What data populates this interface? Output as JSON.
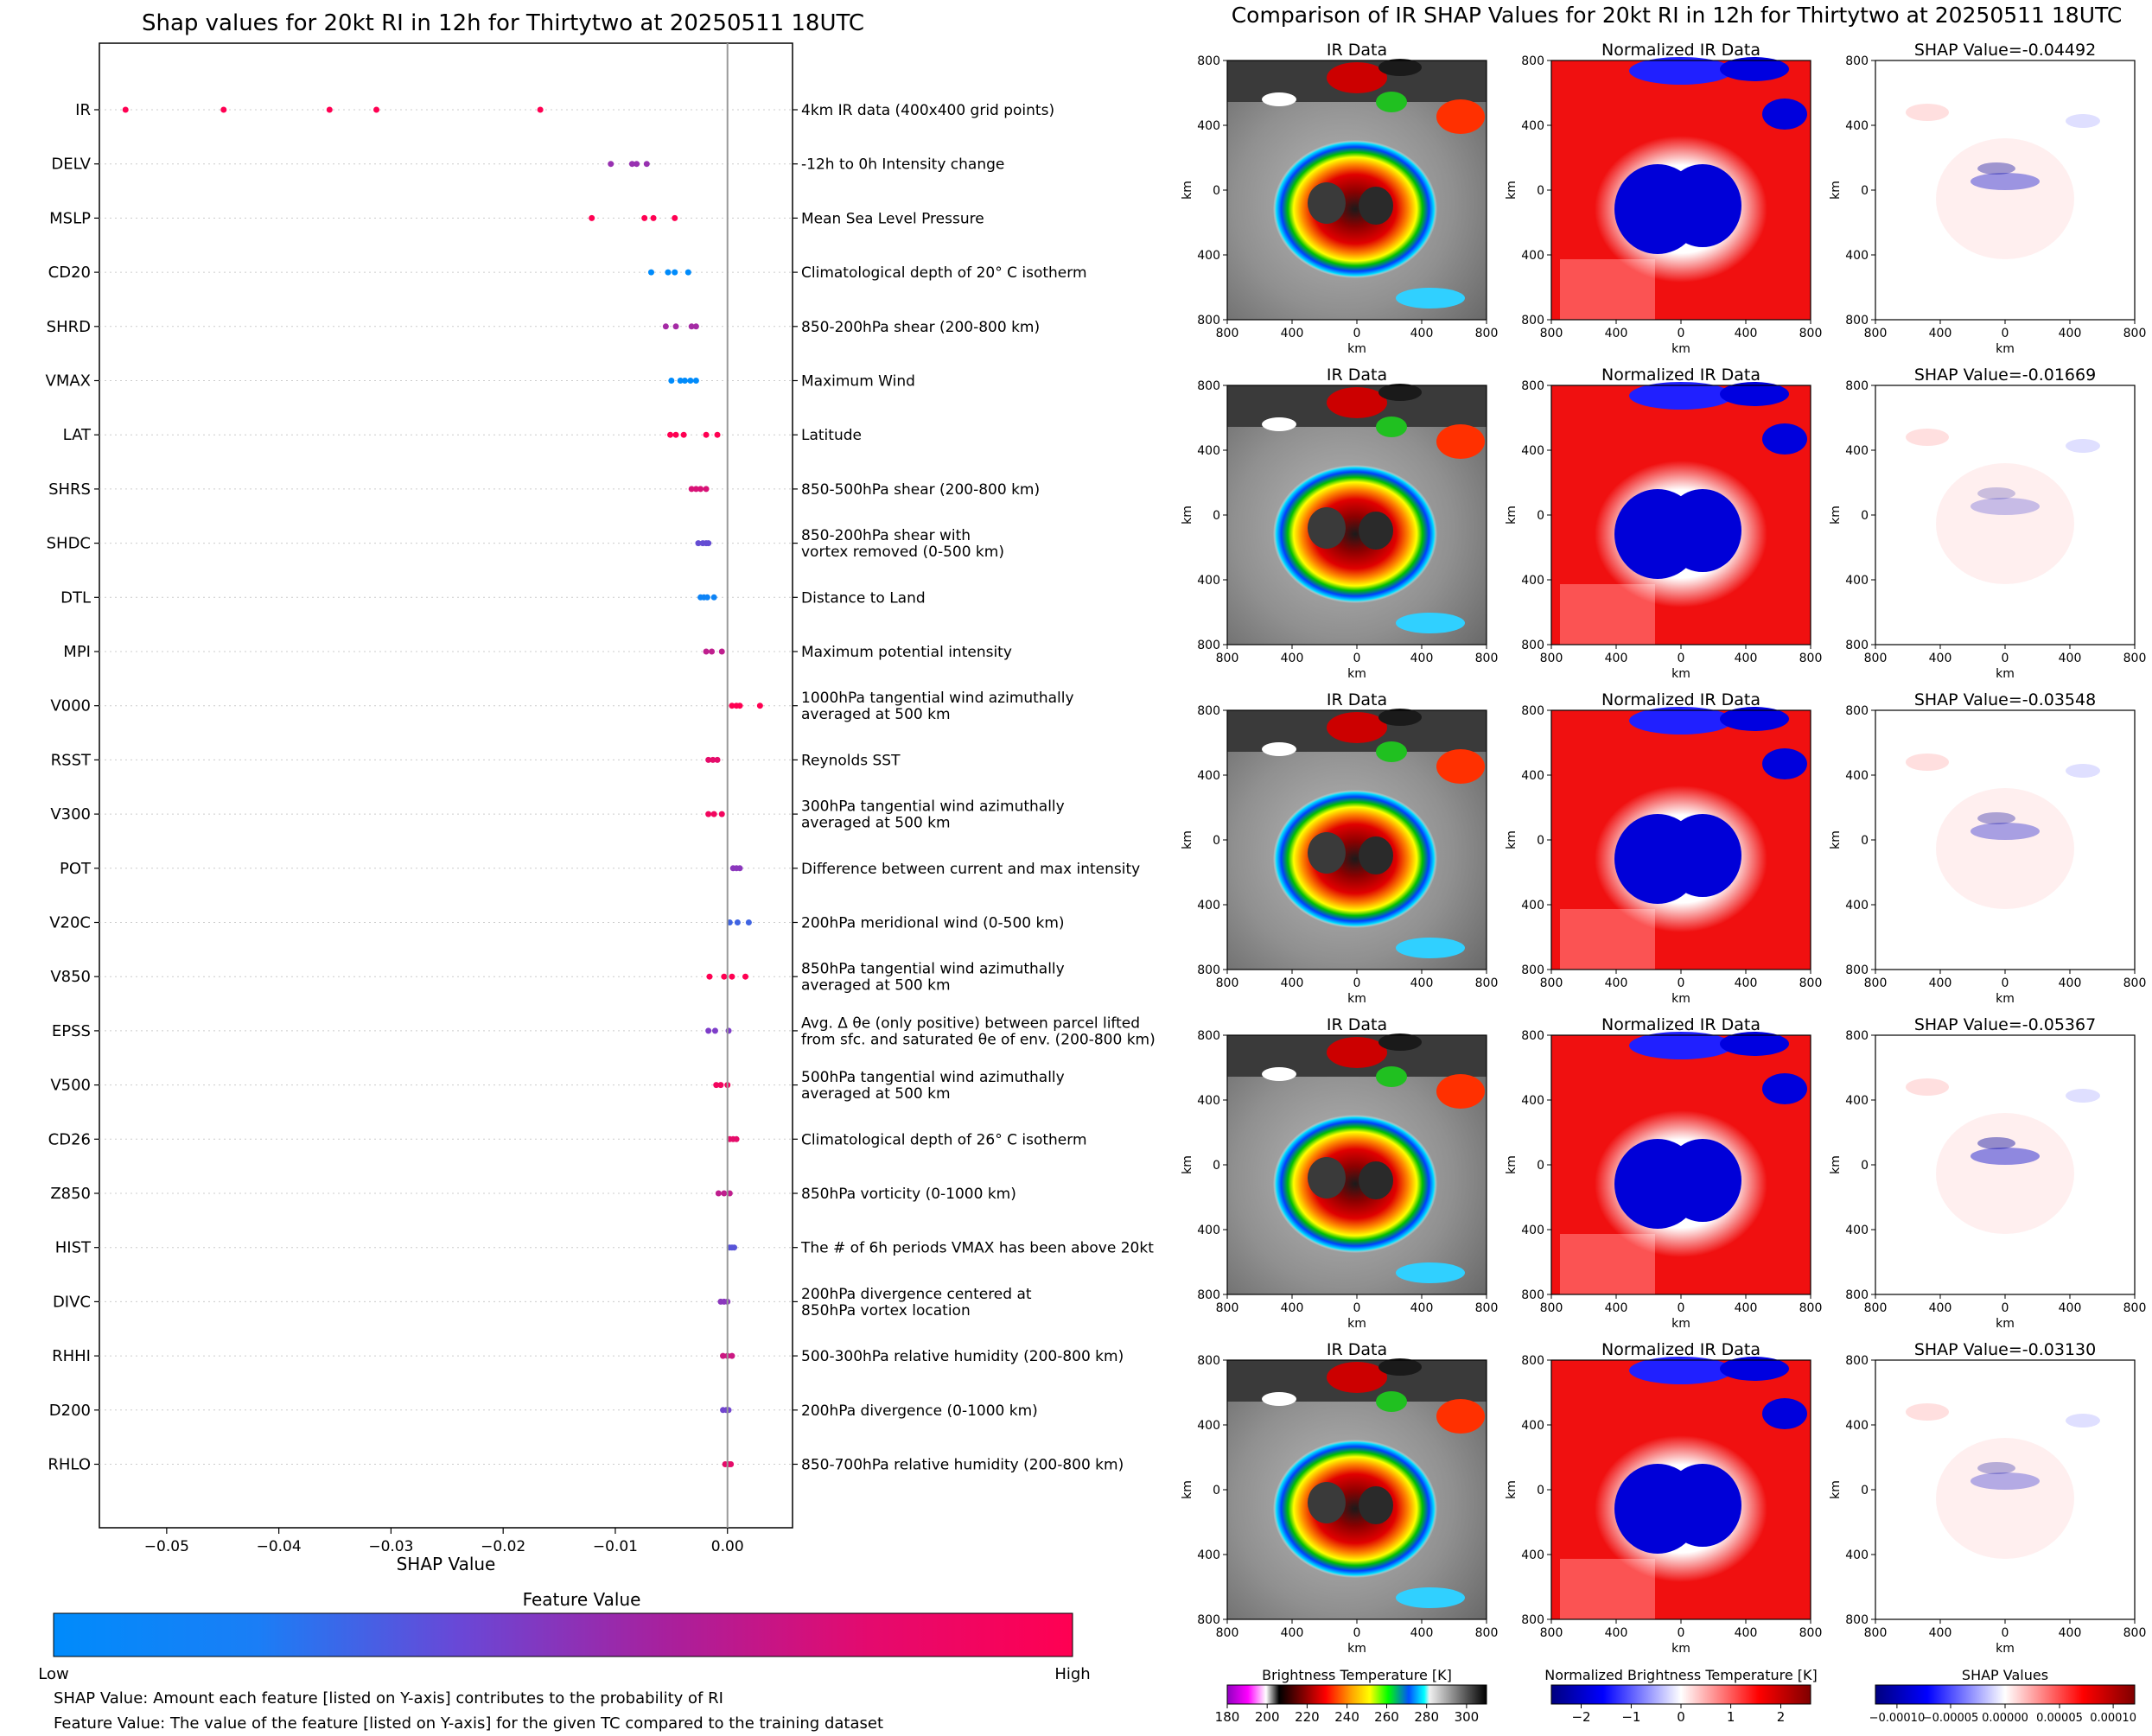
{
  "left_panel": {
    "title": "Shap values for 20kt RI in 12h for Thirtytwo at 20250511 18UTC",
    "xlabel": "SHAP Value",
    "xticks": [
      "−0.05",
      "−0.04",
      "−0.03",
      "−0.02",
      "−0.01",
      "0.00"
    ],
    "colorbar_title": "Feature Value",
    "colorbar_low": "Low",
    "colorbar_high": "High",
    "colors": {
      "low": "#008bfb",
      "mid": "#7e3dc9",
      "high": "#ff0052"
    },
    "note1": "SHAP Value: Amount each feature [listed on Y-axis] contributes to the probability of RI",
    "note2": "Feature Value: The value of the feature [listed on Y-axis] for the given TC compared to the training dataset"
  },
  "right_panel": {
    "title": "Comparison of IR SHAP Values for 20kt RI in 12h for Thirtytwo at 20250511 18UTC",
    "col_titles": [
      "IR Data",
      "Normalized IR Data"
    ],
    "shap_titles": [
      "SHAP Value=-0.04492",
      "SHAP Value=-0.01669",
      "SHAP Value=-0.03548",
      "SHAP Value=-0.05367",
      "SHAP Value=-0.03130"
    ],
    "axis_unit": "km",
    "tick_labels": [
      "800",
      "400",
      "0",
      "400",
      "800"
    ],
    "colorbars": [
      {
        "title": "Brightness Temperature [K]",
        "ticks": [
          "180",
          "200",
          "220",
          "240",
          "260",
          "280",
          "300"
        ]
      },
      {
        "title": "Normalized Brightness Temperature [K]",
        "ticks": [
          "−2",
          "−1",
          "0",
          "1",
          "2"
        ]
      },
      {
        "title": "SHAP Values",
        "ticks": [
          "−0.00010",
          "−0.00005",
          "0.00000",
          "0.00005",
          "0.00010"
        ]
      }
    ]
  },
  "chart_data": [
    {
      "type": "scatter",
      "title": "Shap values for 20kt RI in 12h for Thirtytwo at 20250511 18UTC",
      "xlabel": "SHAP Value",
      "xlim": [
        -0.056,
        0.0058
      ],
      "features": [
        {
          "name": "IR",
          "desc": [
            "4km IR data (400x400 grid points)"
          ],
          "color": 1.0,
          "values": [
            -0.05367,
            -0.04492,
            -0.03548,
            -0.0313,
            -0.01669
          ]
        },
        {
          "name": "DELV",
          "desc": [
            "-12h to 0h Intensity change"
          ],
          "color": 0.6,
          "values": [
            -0.0104,
            -0.0085,
            -0.0081,
            -0.0072
          ]
        },
        {
          "name": "MSLP",
          "desc": [
            "Mean Sea Level Pressure"
          ],
          "color": 1.0,
          "values": [
            -0.0121,
            -0.0074,
            -0.0066,
            -0.0047
          ]
        },
        {
          "name": "CD20",
          "desc": [
            "Climatological depth of 20° C isotherm"
          ],
          "color": 0.0,
          "values": [
            -0.0068,
            -0.0053,
            -0.0047,
            -0.0035
          ]
        },
        {
          "name": "SHRD",
          "desc": [
            "850-200hPa shear (200-800 km)"
          ],
          "color": 0.65,
          "values": [
            -0.0055,
            -0.0046,
            -0.0032,
            -0.0028
          ]
        },
        {
          "name": "VMAX",
          "desc": [
            "Maximum Wind"
          ],
          "color": 0.0,
          "values": [
            -0.005,
            -0.0042,
            -0.0038,
            -0.0033,
            -0.0028
          ]
        },
        {
          "name": "LAT",
          "desc": [
            "Latitude"
          ],
          "color": 1.0,
          "values": [
            -0.0051,
            -0.0046,
            -0.0039,
            -0.0019,
            -0.0009
          ]
        },
        {
          "name": "SHRS",
          "desc": [
            "850-500hPa shear (200-800 km)"
          ],
          "color": 0.85,
          "values": [
            -0.0032,
            -0.0028,
            -0.0024,
            -0.0019
          ]
        },
        {
          "name": "SHDC",
          "desc": [
            "850-200hPa shear with",
            "vortex removed (0-500 km)"
          ],
          "color": 0.4,
          "values": [
            -0.0026,
            -0.0022,
            -0.0019,
            -0.0017
          ]
        },
        {
          "name": "DTL",
          "desc": [
            "Distance to Land"
          ],
          "color": 0.05,
          "values": [
            -0.0024,
            -0.0021,
            -0.0018,
            -0.0012
          ]
        },
        {
          "name": "MPI",
          "desc": [
            "Maximum potential intensity"
          ],
          "color": 0.75,
          "values": [
            -0.0019,
            -0.0014,
            -0.0005
          ]
        },
        {
          "name": "V000",
          "desc": [
            "1000hPa tangential wind azimuthally",
            "averaged at 500 km"
          ],
          "color": 1.0,
          "values": [
            0.0004,
            0.0008,
            0.0011,
            0.0029
          ]
        },
        {
          "name": "RSST",
          "desc": [
            "Reynolds SST"
          ],
          "color": 0.9,
          "values": [
            -0.0017,
            -0.0013,
            -0.0009
          ]
        },
        {
          "name": "V300",
          "desc": [
            "300hPa tangential wind azimuthally",
            "averaged at 500 km"
          ],
          "color": 0.95,
          "values": [
            -0.0017,
            -0.0012,
            -0.0005
          ]
        },
        {
          "name": "POT",
          "desc": [
            "Difference between current and max intensity"
          ],
          "color": 0.55,
          "values": [
            0.0005,
            0.0008,
            0.0011
          ]
        },
        {
          "name": "V20C",
          "desc": [
            "200hPa meridional wind (0-500 km)"
          ],
          "color": 0.25,
          "values": [
            0.0002,
            0.0009,
            0.0019
          ]
        },
        {
          "name": "V850",
          "desc": [
            "850hPa tangential wind azimuthally",
            "averaged at 500 km"
          ],
          "color": 1.0,
          "values": [
            -0.0016,
            -0.0003,
            0.0004,
            0.0016
          ]
        },
        {
          "name": "EPSS",
          "desc": [
            "Avg. Δ θe (only positive) between parcel lifted",
            "from sfc. and saturated θe of env. (200-800 km)"
          ],
          "color": 0.5,
          "values": [
            -0.0017,
            -0.0011,
            0.0001
          ]
        },
        {
          "name": "V500",
          "desc": [
            "500hPa tangential wind azimuthally",
            "averaged at 500 km"
          ],
          "color": 0.95,
          "values": [
            -0.001,
            -0.0006,
            0.0
          ]
        },
        {
          "name": "CD26",
          "desc": [
            "Climatological depth of 26° C isotherm"
          ],
          "color": 0.9,
          "values": [
            0.0002,
            0.0005,
            0.0008
          ]
        },
        {
          "name": "Z850",
          "desc": [
            "850hPa vorticity (0-1000 km)"
          ],
          "color": 0.75,
          "values": [
            -0.0008,
            -0.0003,
            0.0002
          ]
        },
        {
          "name": "HIST",
          "desc": [
            "The # of 6h periods VMAX has been above 20kt"
          ],
          "color": 0.35,
          "values": [
            0.0002,
            0.0004,
            0.0006
          ]
        },
        {
          "name": "DIVC",
          "desc": [
            "200hPa divergence centered at",
            "850hPa vortex location"
          ],
          "color": 0.55,
          "values": [
            -0.0006,
            -0.0003,
            0.0
          ]
        },
        {
          "name": "RHHI",
          "desc": [
            "500-300hPa relative humidity (200-800 km)"
          ],
          "color": 0.8,
          "values": [
            -0.0004,
            0.0,
            0.0004
          ]
        },
        {
          "name": "D200",
          "desc": [
            "200hPa divergence (0-1000 km)"
          ],
          "color": 0.45,
          "values": [
            -0.0004,
            -0.0001,
            0.0001
          ]
        },
        {
          "name": "RHLO",
          "desc": [
            "850-700hPa relative humidity (200-800 km)"
          ],
          "color": 0.9,
          "values": [
            -0.0002,
            0.0001,
            0.0003
          ]
        }
      ]
    },
    {
      "type": "heatmap",
      "title": "Comparison of IR SHAP Values for 20kt RI in 12h for Thirtytwo at 20250511 18UTC",
      "xlabel": "km",
      "ylabel": "km",
      "xlim": [
        -800,
        800
      ],
      "ylim": [
        -800,
        800
      ],
      "shap_values": [
        -0.04492,
        -0.01669,
        -0.03548,
        -0.05367,
        -0.0313
      ],
      "colorbar_ranges": {
        "brightness_temperature": [
          180,
          310
        ],
        "normalized": [
          -2.6,
          2.6
        ],
        "shap": [
          -0.00012,
          0.00012
        ]
      }
    }
  ]
}
